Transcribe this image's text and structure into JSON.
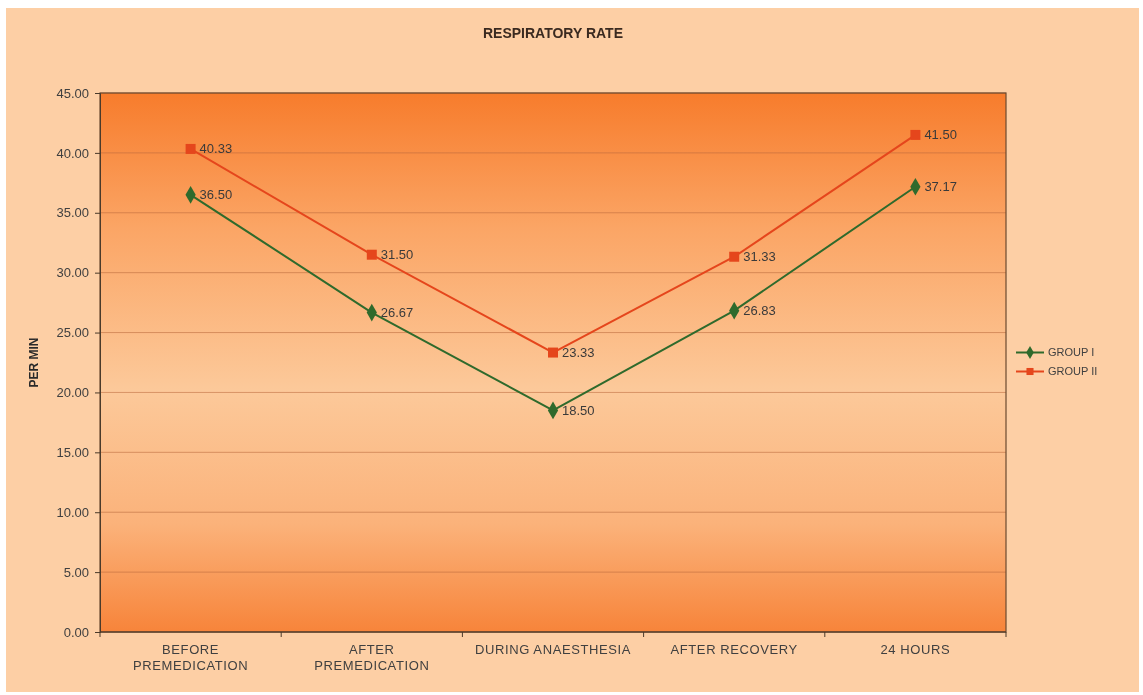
{
  "chart_data": {
    "type": "line",
    "title": "RESPIRATORY RATE",
    "ylabel": "PER MIN",
    "categories": [
      "BEFORE PREMEDICATION",
      "AFTER PREMEDICATION",
      "DURING ANAESTHESIA",
      "AFTER RECOVERY",
      "24 HOURS"
    ],
    "series": [
      {
        "name": "GROUP I",
        "color": "#2f6a2c",
        "marker": "diamond",
        "values": [
          36.5,
          26.67,
          18.5,
          26.83,
          37.17
        ],
        "value_labels": [
          "36.50",
          "26.67",
          "18.50",
          "26.83",
          "37.17"
        ]
      },
      {
        "name": "GROUP II",
        "color": "#e5461c",
        "marker": "square",
        "values": [
          40.33,
          31.5,
          23.33,
          31.33,
          41.5
        ],
        "value_labels": [
          "40.33",
          "31.50",
          "23.33",
          "31.33",
          "41.50"
        ]
      }
    ],
    "ylim": [
      0,
      45
    ],
    "yticks": [
      {
        "value": 0,
        "label": "0.00"
      },
      {
        "value": 5,
        "label": "5.00"
      },
      {
        "value": 10,
        "label": "10.00"
      },
      {
        "value": 15,
        "label": "15.00"
      },
      {
        "value": 20,
        "label": "20.00"
      },
      {
        "value": 25,
        "label": "25.00"
      },
      {
        "value": 30,
        "label": "30.00"
      },
      {
        "value": 35,
        "label": "35.00"
      },
      {
        "value": 40,
        "label": "40.00"
      },
      {
        "value": 45,
        "label": "45.00"
      }
    ],
    "grid": "y",
    "legend": "right"
  }
}
